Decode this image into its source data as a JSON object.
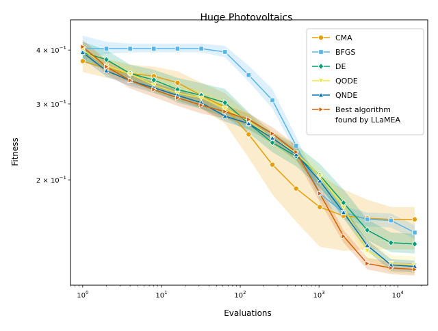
{
  "chart_data": {
    "type": "line",
    "title": "Huge Photovoltaics",
    "xlabel": "Evaluations",
    "ylabel": "Fitness",
    "xscale": "log",
    "yscale": "log",
    "xlim": [
      0.7,
      24000
    ],
    "ylim": [
      0.114,
      0.47
    ],
    "x_ticks": [
      {
        "value": 1,
        "base": "10",
        "exp": "0"
      },
      {
        "value": 10,
        "base": "10",
        "exp": "1"
      },
      {
        "value": 100,
        "base": "10",
        "exp": "2"
      },
      {
        "value": 1000,
        "base": "10",
        "exp": "3"
      },
      {
        "value": 10000,
        "base": "10",
        "exp": "4"
      }
    ],
    "y_ticks": [
      {
        "value": 0.2,
        "mant": "2",
        "exp": "−1"
      },
      {
        "value": 0.3,
        "mant": "3",
        "exp": "−1"
      },
      {
        "value": 0.4,
        "mant": "4",
        "exp": "−1"
      }
    ],
    "grid": false,
    "legend_position": "top-right",
    "x": [
      1,
      2,
      4,
      8,
      16,
      32,
      64,
      128,
      256,
      512,
      1024,
      2048,
      4096,
      8192,
      16384
    ],
    "series": [
      {
        "name": "CMA",
        "color": "#E69F00",
        "marker": "circle",
        "values": [
          0.377,
          0.362,
          0.353,
          0.348,
          0.336,
          0.314,
          0.295,
          0.255,
          0.217,
          0.191,
          0.173,
          0.165,
          0.163,
          0.162,
          0.162
        ],
        "lower": [
          0.356,
          0.345,
          0.338,
          0.33,
          0.314,
          0.292,
          0.27,
          0.225,
          0.185,
          0.16,
          0.14,
          0.137,
          0.138,
          0.138,
          0.138
        ],
        "upper": [
          0.397,
          0.381,
          0.37,
          0.366,
          0.357,
          0.336,
          0.318,
          0.285,
          0.25,
          0.225,
          0.205,
          0.19,
          0.18,
          0.173,
          0.173
        ]
      },
      {
        "name": "BFGS",
        "color": "#56B4E9",
        "marker": "square",
        "values": [
          0.403,
          0.403,
          0.403,
          0.403,
          0.403,
          0.403,
          0.396,
          0.35,
          0.306,
          0.24,
          0.186,
          0.168,
          0.162,
          0.161,
          0.151
        ],
        "lower": [
          0.38,
          0.392,
          0.395,
          0.395,
          0.395,
          0.395,
          0.385,
          0.338,
          0.293,
          0.23,
          0.18,
          0.162,
          0.156,
          0.155,
          0.146
        ],
        "upper": [
          0.432,
          0.418,
          0.414,
          0.414,
          0.414,
          0.414,
          0.409,
          0.368,
          0.325,
          0.252,
          0.193,
          0.174,
          0.168,
          0.167,
          0.157
        ]
      },
      {
        "name": "DE",
        "color": "#009E73",
        "marker": "diamond",
        "values": [
          0.395,
          0.38,
          0.353,
          0.341,
          0.324,
          0.314,
          0.302,
          0.27,
          0.244,
          0.227,
          0.205,
          0.177,
          0.153,
          0.143,
          0.142
        ],
        "lower": [
          0.375,
          0.362,
          0.335,
          0.322,
          0.302,
          0.292,
          0.28,
          0.257,
          0.232,
          0.215,
          0.192,
          0.165,
          0.145,
          0.136,
          0.135
        ],
        "upper": [
          0.418,
          0.4,
          0.37,
          0.36,
          0.345,
          0.335,
          0.325,
          0.287,
          0.258,
          0.241,
          0.218,
          0.19,
          0.162,
          0.151,
          0.15
        ]
      },
      {
        "name": "QODE",
        "color": "#F0E442",
        "marker": "triangle-down",
        "values": [
          0.4,
          0.368,
          0.352,
          0.332,
          0.318,
          0.31,
          0.293,
          0.274,
          0.25,
          0.231,
          0.204,
          0.173,
          0.137,
          0.128,
          0.127
        ],
        "lower": [
          0.385,
          0.355,
          0.338,
          0.318,
          0.305,
          0.297,
          0.281,
          0.264,
          0.24,
          0.221,
          0.195,
          0.165,
          0.13,
          0.122,
          0.121
        ],
        "upper": [
          0.415,
          0.382,
          0.366,
          0.346,
          0.331,
          0.323,
          0.305,
          0.284,
          0.26,
          0.241,
          0.213,
          0.181,
          0.144,
          0.134,
          0.133
        ]
      },
      {
        "name": "QNDE",
        "color": "#0072B2",
        "marker": "triangle-up",
        "values": [
          0.395,
          0.358,
          0.34,
          0.327,
          0.314,
          0.302,
          0.281,
          0.27,
          0.25,
          0.229,
          0.199,
          0.168,
          0.141,
          0.127,
          0.126
        ],
        "lower": [
          0.382,
          0.347,
          0.33,
          0.318,
          0.305,
          0.293,
          0.273,
          0.262,
          0.243,
          0.222,
          0.193,
          0.163,
          0.137,
          0.123,
          0.122
        ],
        "upper": [
          0.408,
          0.369,
          0.35,
          0.336,
          0.323,
          0.311,
          0.289,
          0.278,
          0.257,
          0.236,
          0.205,
          0.173,
          0.145,
          0.131,
          0.13
        ]
      },
      {
        "name": "Best algorithm found by LLaMEA",
        "label_lines": [
          "Best algorithm",
          "found by LLaMEA"
        ],
        "color": "#D55E00",
        "marker": "triangle-right",
        "values": [
          0.407,
          0.366,
          0.34,
          0.324,
          0.31,
          0.298,
          0.288,
          0.276,
          0.256,
          0.232,
          0.186,
          0.148,
          0.128,
          0.125,
          0.124
        ],
        "lower": [
          0.392,
          0.353,
          0.326,
          0.311,
          0.297,
          0.285,
          0.278,
          0.267,
          0.247,
          0.223,
          0.178,
          0.143,
          0.124,
          0.121,
          0.12
        ],
        "upper": [
          0.422,
          0.379,
          0.354,
          0.337,
          0.323,
          0.311,
          0.298,
          0.285,
          0.265,
          0.241,
          0.194,
          0.153,
          0.132,
          0.129,
          0.128
        ]
      }
    ]
  }
}
